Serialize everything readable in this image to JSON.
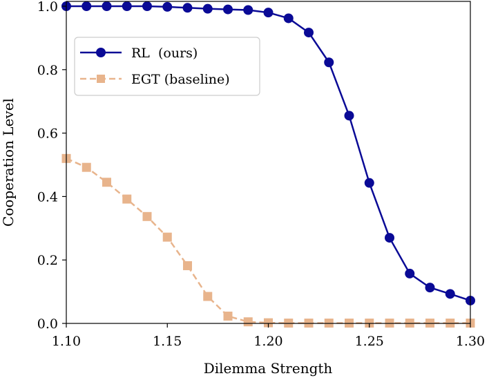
{
  "chart_data": {
    "type": "line",
    "xlabel": "Dilemma Strength",
    "ylabel": "Cooperation Level",
    "xlim": [
      1.1,
      1.3
    ],
    "ylim": [
      0.0,
      1.0
    ],
    "x_ticks": [
      "1.10",
      "1.15",
      "1.20",
      "1.25",
      "1.30"
    ],
    "y_ticks": [
      "0.0",
      "0.2",
      "0.4",
      "0.6",
      "0.8",
      "1.0"
    ],
    "legend_position": "upper-left",
    "grid": false,
    "x": [
      1.1,
      1.11,
      1.12,
      1.13,
      1.14,
      1.15,
      1.16,
      1.17,
      1.18,
      1.19,
      1.2,
      1.21,
      1.22,
      1.23,
      1.24,
      1.25,
      1.26,
      1.27,
      1.28,
      1.29,
      1.3
    ],
    "series": [
      {
        "name": "RL  (ours)",
        "color": "#0a0a96",
        "marker": "circle",
        "linestyle": "solid",
        "values": [
          1.0,
          1.0,
          1.0,
          1.0,
          1.0,
          0.998,
          0.995,
          0.992,
          0.99,
          0.988,
          0.98,
          0.962,
          0.917,
          0.823,
          0.655,
          0.443,
          0.27,
          0.157,
          0.113,
          0.093,
          0.072
        ]
      },
      {
        "name": "EGT (baseline)",
        "color": "#e8b48c",
        "marker": "square",
        "linestyle": "dashed",
        "values": [
          0.52,
          0.492,
          0.445,
          0.392,
          0.337,
          0.272,
          0.182,
          0.085,
          0.023,
          0.005,
          0.002,
          0.001,
          0.001,
          0.001,
          0.001,
          0.001,
          0.001,
          0.001,
          0.001,
          0.001,
          0.001
        ]
      }
    ]
  }
}
